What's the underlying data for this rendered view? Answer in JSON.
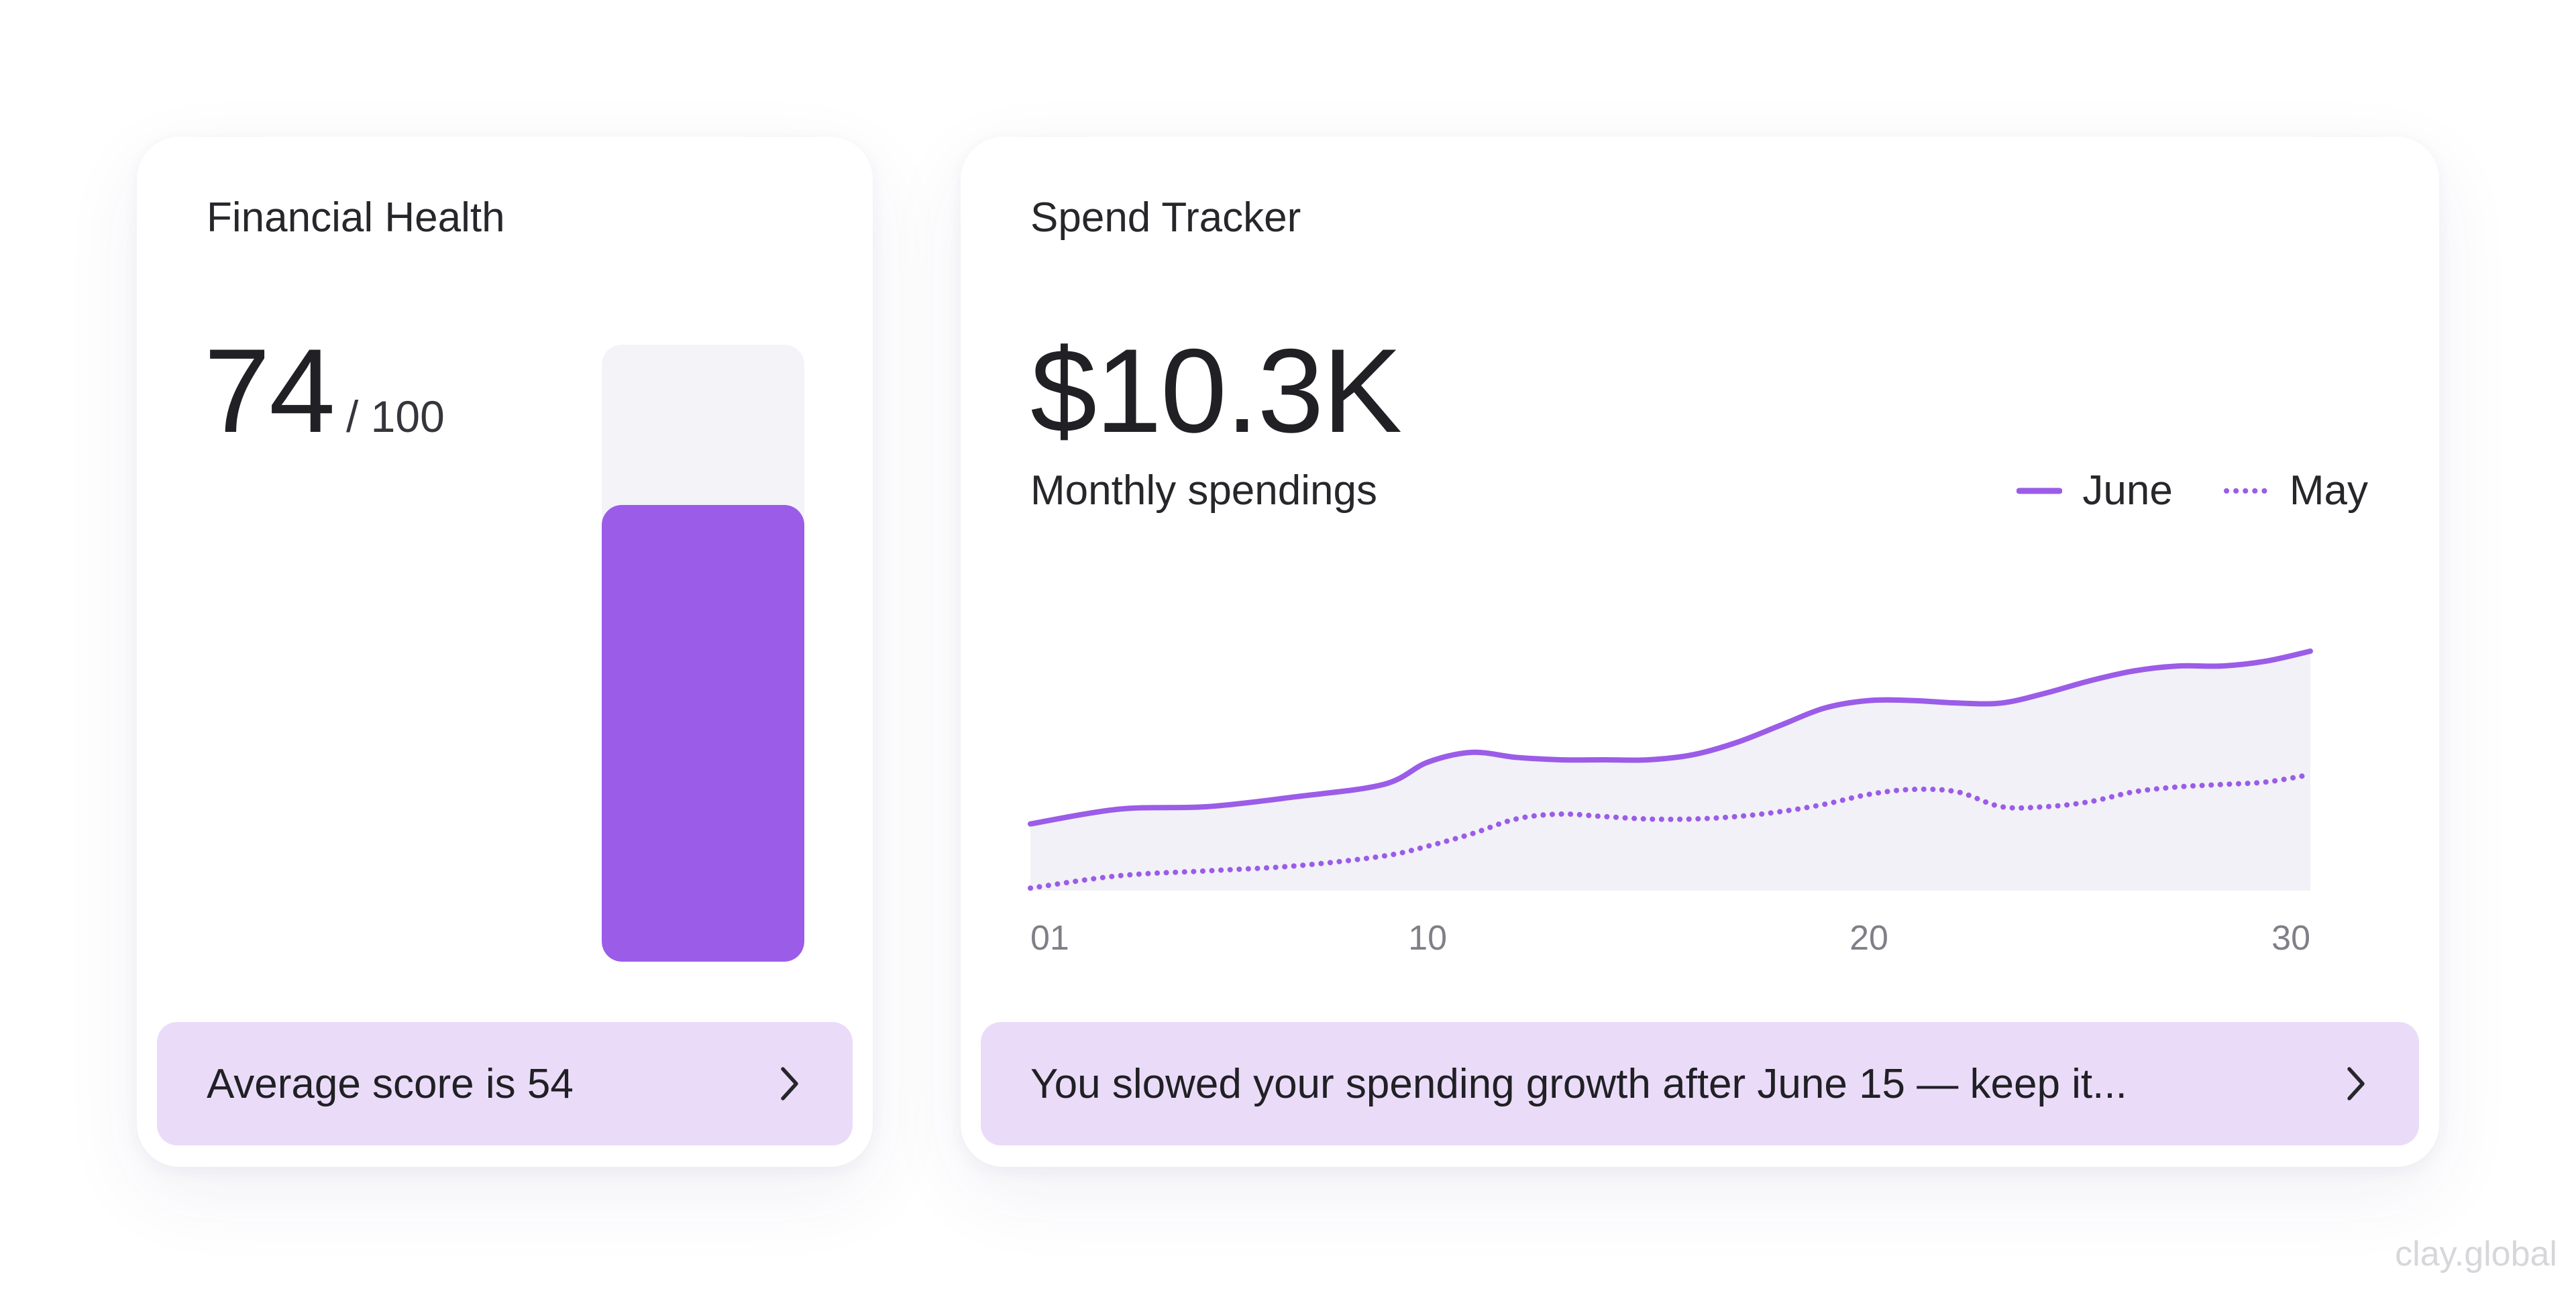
{
  "health_card": {
    "title": "Financial Health",
    "score": "74",
    "score_max": "/ 100",
    "score_value": 74,
    "score_out_of": 100,
    "insight": "Average score is 54"
  },
  "spend_card": {
    "title": "Spend Tracker",
    "total": "$10.3K",
    "subtitle": "Monthly spendings",
    "insight": "You slowed your spending growth after June 15 — keep it..."
  },
  "icons": {
    "insight_arrow": "chevron-right-icon"
  },
  "colors": {
    "accent": "#9b5ce8",
    "insight_bg": "#eadcf8",
    "track_bg": "#f3f3f8",
    "area_fill": "#f1f1f7",
    "tick_text": "#7f7f88"
  },
  "watermark": "clay.global",
  "chart_data": {
    "type": "line",
    "x_ticks": [
      "01",
      "10",
      "20",
      "30"
    ],
    "x_tick_values": [
      1,
      10,
      20,
      30
    ],
    "xlim": [
      1,
      30
    ],
    "ylim": [
      0,
      100
    ],
    "grid": false,
    "legend": "top-right",
    "series": [
      {
        "name": "June",
        "style": "solid",
        "x": [
          1,
          3,
          5,
          7,
          9,
          10,
          11,
          12,
          13,
          14,
          15,
          16,
          17,
          18,
          19,
          20,
          21,
          22,
          23,
          24,
          25,
          26,
          27,
          28,
          29,
          30
        ],
        "values": [
          27,
          33,
          34,
          38,
          43,
          52,
          56,
          54,
          53,
          53,
          53,
          55,
          60,
          67,
          74,
          77,
          77,
          76,
          76,
          80,
          85,
          89,
          91,
          91,
          93,
          97
        ]
      },
      {
        "name": "May",
        "style": "dotted",
        "x": [
          1,
          3,
          5,
          7,
          9,
          10,
          11,
          12,
          13,
          14,
          15,
          16,
          17,
          18,
          19,
          20,
          21,
          22,
          23,
          24,
          25,
          26,
          27,
          28,
          29,
          30
        ],
        "values": [
          1,
          6,
          8,
          10,
          14,
          18,
          23,
          29,
          31,
          30,
          29,
          29,
          30,
          32,
          35,
          39,
          41,
          40,
          34,
          34,
          36,
          40,
          42,
          43,
          44,
          47
        ]
      }
    ]
  }
}
